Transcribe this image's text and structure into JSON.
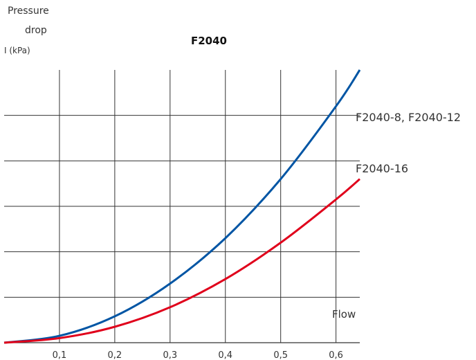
{
  "chart_data": {
    "type": "line",
    "title": "F2040",
    "ylabel_lines": [
      "Pressure",
      "drop"
    ],
    "ylabel_unit": "I (kPa)",
    "xlabel": "Flow",
    "x_ticks": [
      "0,1",
      "0,2",
      "0,3",
      "0,4",
      "0,5",
      "0,6"
    ],
    "x_tick_values": [
      0.1,
      0.2,
      0.3,
      0.4,
      0.5,
      0.6
    ],
    "xlim": [
      0.0,
      0.643
    ],
    "ylim": [
      0,
      6
    ],
    "y_grid_count": 6,
    "grid": true,
    "series": [
      {
        "name": "F2040-8, F2040-12",
        "color": "#0055a4",
        "x": [
          0.0,
          0.1,
          0.2,
          0.3,
          0.4,
          0.5,
          0.6,
          0.643
        ],
        "y": [
          0.0,
          0.15,
          0.58,
          1.3,
          2.3,
          3.6,
          5.2,
          6.0
        ]
      },
      {
        "name": "F2040-16",
        "color": "#e0001b",
        "x": [
          0.0,
          0.1,
          0.2,
          0.3,
          0.4,
          0.5,
          0.6,
          0.643
        ],
        "y": [
          0.0,
          0.1,
          0.35,
          0.78,
          1.4,
          2.2,
          3.15,
          3.6
        ]
      }
    ]
  }
}
